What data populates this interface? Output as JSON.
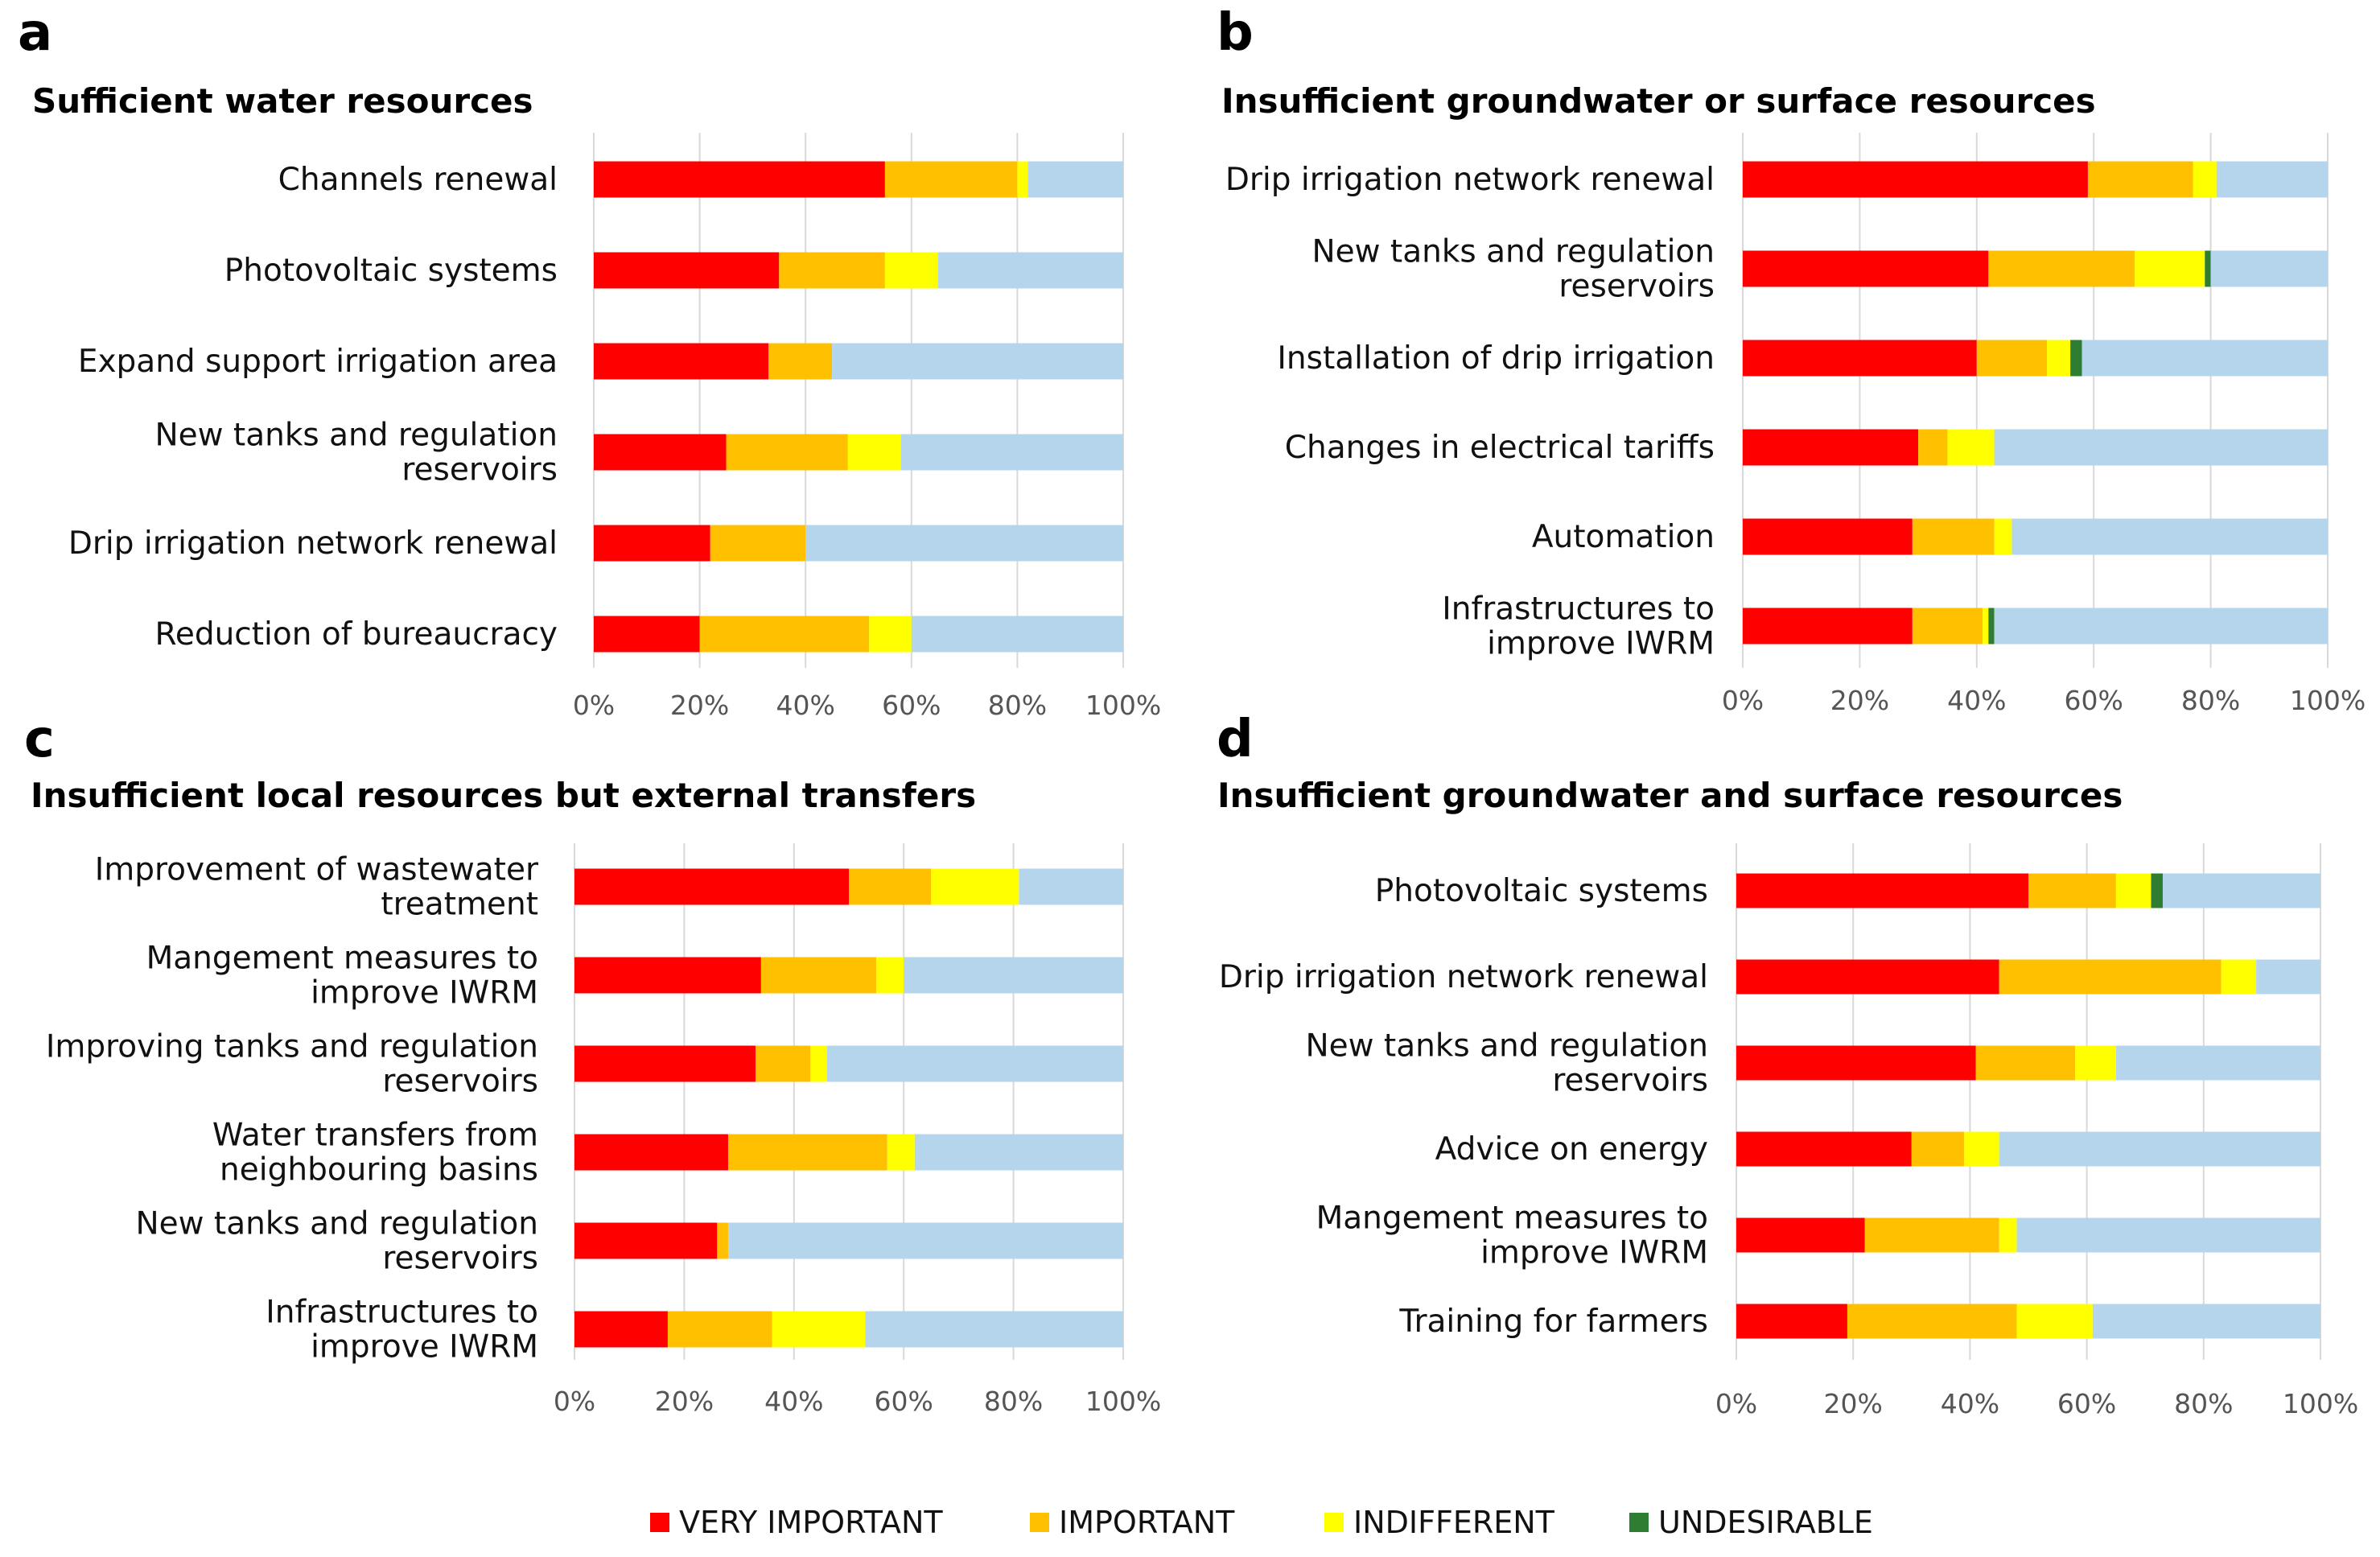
{
  "colors": {
    "VERY IMPORTANT": "#ff0000",
    "IMPORTANT": "#ffc000",
    "INDIFFERENT": "#ffff00",
    "UNDESIRABLE": "#2e7d32",
    "remainder": "#b4d5ec"
  },
  "legend": [
    "VERY IMPORTANT",
    "IMPORTANT",
    "INDIFFERENT",
    "UNDESIRABLE"
  ],
  "chart_data": [
    {
      "panel": "a",
      "type": "bar",
      "orientation": "horizontal",
      "stacked": true,
      "title": "Sufficient water resources",
      "categories": [
        [
          "Channels renewal"
        ],
        [
          "Photovoltaic systems"
        ],
        [
          "Expand support irrigation area"
        ],
        [
          "New tanks and regulation",
          "reservoirs"
        ],
        [
          "Drip irrigation network renewal"
        ],
        [
          "Reduction of bureaucracy"
        ]
      ],
      "series": [
        {
          "name": "VERY IMPORTANT",
          "values": [
            55,
            35,
            33,
            25,
            22,
            20
          ]
        },
        {
          "name": "IMPORTANT",
          "values": [
            25,
            20,
            12,
            23,
            18,
            32
          ]
        },
        {
          "name": "INDIFFERENT",
          "values": [
            2,
            10,
            0,
            10,
            0,
            8
          ]
        },
        {
          "name": "UNDESIRABLE",
          "values": [
            0,
            0,
            0,
            0,
            0,
            0
          ]
        }
      ],
      "xticks": [
        "0%",
        "20%",
        "40%",
        "60%",
        "80%",
        "100%"
      ],
      "xlim": [
        0,
        100
      ],
      "grid": true
    },
    {
      "panel": "b",
      "type": "bar",
      "orientation": "horizontal",
      "stacked": true,
      "title": "Insufficient groundwater  or surface resources",
      "categories": [
        [
          "Drip irrigation network renewal"
        ],
        [
          "New tanks and regulation",
          "reservoirs"
        ],
        [
          "Installation of drip irrigation"
        ],
        [
          "Changes in electrical tariffs"
        ],
        [
          "Automation"
        ],
        [
          "Infrastructures to",
          "improve IWRM"
        ]
      ],
      "series": [
        {
          "name": "VERY IMPORTANT",
          "values": [
            59,
            42,
            40,
            30,
            29,
            29
          ]
        },
        {
          "name": "IMPORTANT",
          "values": [
            18,
            25,
            12,
            5,
            14,
            12
          ]
        },
        {
          "name": "INDIFFERENT",
          "values": [
            4,
            12,
            4,
            8,
            3,
            1
          ]
        },
        {
          "name": "UNDESIRABLE",
          "values": [
            0,
            1,
            2,
            0,
            0,
            1
          ]
        }
      ],
      "xticks": [
        "0%",
        "20%",
        "40%",
        "60%",
        "80%",
        "100%"
      ],
      "xlim": [
        0,
        100
      ],
      "grid": true
    },
    {
      "panel": "c",
      "type": "bar",
      "orientation": "horizontal",
      "stacked": true,
      "title": "Insufficient  local resources but external transfers",
      "categories": [
        [
          "Improvement of wastewater",
          "treatment"
        ],
        [
          "Mangement measures to",
          "improve IWRM"
        ],
        [
          "Improving tanks and regulation",
          "reservoirs"
        ],
        [
          "Water transfers from",
          "neighbouring basins"
        ],
        [
          "New tanks and regulation",
          "reservoirs"
        ],
        [
          "Infrastructures to",
          "improve IWRM"
        ]
      ],
      "series": [
        {
          "name": "VERY IMPORTANT",
          "values": [
            50,
            34,
            33,
            28,
            26,
            17
          ]
        },
        {
          "name": "IMPORTANT",
          "values": [
            15,
            21,
            10,
            29,
            2,
            19
          ]
        },
        {
          "name": "INDIFFERENT",
          "values": [
            16,
            5,
            3,
            5,
            0,
            17
          ]
        },
        {
          "name": "UNDESIRABLE",
          "values": [
            0,
            0,
            0,
            0,
            0,
            0
          ]
        }
      ],
      "xticks": [
        "0%",
        "20%",
        "40%",
        "60%",
        "80%",
        "100%"
      ],
      "xlim": [
        0,
        100
      ],
      "grid": true
    },
    {
      "panel": "d",
      "type": "bar",
      "orientation": "horizontal",
      "stacked": true,
      "title": "Insufficient groundwater  and surface resources",
      "categories": [
        [
          "Photovoltaic systems"
        ],
        [
          "Drip irrigation network renewal"
        ],
        [
          "New tanks and regulation",
          "reservoirs"
        ],
        [
          "Advice on energy"
        ],
        [
          "Mangement measures to",
          "improve IWRM"
        ],
        [
          "Training for farmers"
        ]
      ],
      "series": [
        {
          "name": "VERY IMPORTANT",
          "values": [
            50,
            45,
            41,
            30,
            22,
            19
          ]
        },
        {
          "name": "IMPORTANT",
          "values": [
            15,
            38,
            17,
            9,
            23,
            29
          ]
        },
        {
          "name": "INDIFFERENT",
          "values": [
            6,
            6,
            7,
            6,
            3,
            13
          ]
        },
        {
          "name": "UNDESIRABLE",
          "values": [
            2,
            0,
            0,
            0,
            0,
            0
          ]
        }
      ],
      "xticks": [
        "0%",
        "20%",
        "40%",
        "60%",
        "80%",
        "100%"
      ],
      "xlim": [
        0,
        100
      ],
      "grid": true
    }
  ]
}
